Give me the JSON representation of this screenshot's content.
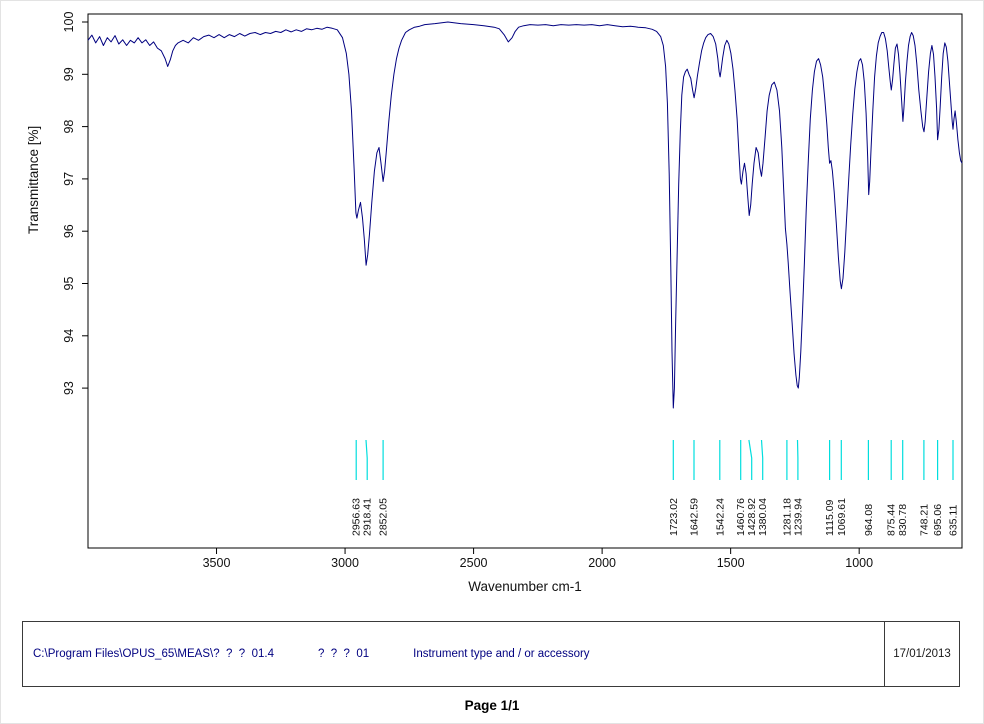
{
  "chart_data": {
    "type": "line",
    "title": "",
    "xlabel": "Wavenumber cm-1",
    "ylabel": "Transmittance [%]",
    "x_ticks": [
      3500,
      3000,
      2500,
      2000,
      1500,
      1000
    ],
    "y_ticks": [
      93,
      94,
      95,
      96,
      97,
      98,
      99,
      100
    ],
    "xlim": [
      4000,
      600
    ],
    "ylim": [
      92.0,
      100.2
    ],
    "x_axis_reversed": true,
    "grid": false,
    "line_color": "#000080",
    "peak_marker_color": "#00dede",
    "peaks": [
      "2956.63",
      "2918.41",
      "2852.05",
      "1723.02",
      "1642.59",
      "1542.24",
      "1460.76",
      "1428.92",
      "1380.04",
      "1281.18",
      "1239.94",
      "1115.09",
      "1069.61",
      "964.08",
      "875.44",
      "830.78",
      "748.21",
      "695.06",
      "635.11"
    ],
    "series": [
      {
        "name": "Transmittance",
        "points": [
          [
            4000,
            99.65
          ],
          [
            3985,
            99.75
          ],
          [
            3970,
            99.6
          ],
          [
            3955,
            99.72
          ],
          [
            3940,
            99.55
          ],
          [
            3925,
            99.7
          ],
          [
            3910,
            99.62
          ],
          [
            3895,
            99.74
          ],
          [
            3880,
            99.58
          ],
          [
            3865,
            99.66
          ],
          [
            3850,
            99.55
          ],
          [
            3835,
            99.65
          ],
          [
            3820,
            99.6
          ],
          [
            3805,
            99.7
          ],
          [
            3790,
            99.6
          ],
          [
            3775,
            99.66
          ],
          [
            3760,
            99.55
          ],
          [
            3745,
            99.62
          ],
          [
            3730,
            99.5
          ],
          [
            3715,
            99.45
          ],
          [
            3700,
            99.3
          ],
          [
            3690,
            99.15
          ],
          [
            3680,
            99.28
          ],
          [
            3670,
            99.45
          ],
          [
            3660,
            99.55
          ],
          [
            3650,
            99.6
          ],
          [
            3630,
            99.65
          ],
          [
            3610,
            99.6
          ],
          [
            3590,
            99.7
          ],
          [
            3570,
            99.65
          ],
          [
            3550,
            99.72
          ],
          [
            3530,
            99.75
          ],
          [
            3510,
            99.7
          ],
          [
            3490,
            99.76
          ],
          [
            3470,
            99.7
          ],
          [
            3450,
            99.76
          ],
          [
            3430,
            99.72
          ],
          [
            3410,
            99.78
          ],
          [
            3390,
            99.73
          ],
          [
            3370,
            99.78
          ],
          [
            3350,
            99.8
          ],
          [
            3330,
            99.76
          ],
          [
            3310,
            99.8
          ],
          [
            3290,
            99.78
          ],
          [
            3270,
            99.82
          ],
          [
            3250,
            99.8
          ],
          [
            3230,
            99.85
          ],
          [
            3210,
            99.81
          ],
          [
            3190,
            99.85
          ],
          [
            3170,
            99.82
          ],
          [
            3150,
            99.87
          ],
          [
            3130,
            99.85
          ],
          [
            3110,
            99.88
          ],
          [
            3090,
            99.86
          ],
          [
            3070,
            99.9
          ],
          [
            3050,
            99.88
          ],
          [
            3030,
            99.85
          ],
          [
            3010,
            99.7
          ],
          [
            2995,
            99.4
          ],
          [
            2985,
            99.0
          ],
          [
            2975,
            98.3
          ],
          [
            2965,
            97.2
          ],
          [
            2958,
            96.35
          ],
          [
            2954,
            96.25
          ],
          [
            2948,
            96.4
          ],
          [
            2940,
            96.55
          ],
          [
            2932,
            96.25
          ],
          [
            2925,
            95.85
          ],
          [
            2918,
            95.35
          ],
          [
            2912,
            95.55
          ],
          [
            2905,
            95.95
          ],
          [
            2896,
            96.55
          ],
          [
            2886,
            97.15
          ],
          [
            2876,
            97.5
          ],
          [
            2868,
            97.6
          ],
          [
            2860,
            97.3
          ],
          [
            2852,
            96.95
          ],
          [
            2846,
            97.15
          ],
          [
            2840,
            97.5
          ],
          [
            2830,
            98.1
          ],
          [
            2820,
            98.6
          ],
          [
            2810,
            99.0
          ],
          [
            2800,
            99.3
          ],
          [
            2790,
            99.5
          ],
          [
            2780,
            99.65
          ],
          [
            2765,
            99.8
          ],
          [
            2750,
            99.85
          ],
          [
            2730,
            99.9
          ],
          [
            2710,
            99.92
          ],
          [
            2690,
            99.95
          ],
          [
            2650,
            99.97
          ],
          [
            2600,
            100.0
          ],
          [
            2550,
            99.97
          ],
          [
            2500,
            99.95
          ],
          [
            2460,
            99.93
          ],
          [
            2420,
            99.9
          ],
          [
            2400,
            99.87
          ],
          [
            2380,
            99.75
          ],
          [
            2365,
            99.62
          ],
          [
            2350,
            99.7
          ],
          [
            2338,
            99.82
          ],
          [
            2325,
            99.9
          ],
          [
            2305,
            99.93
          ],
          [
            2280,
            99.95
          ],
          [
            2250,
            99.94
          ],
          [
            2220,
            99.95
          ],
          [
            2190,
            99.93
          ],
          [
            2160,
            99.95
          ],
          [
            2130,
            99.94
          ],
          [
            2100,
            99.95
          ],
          [
            2070,
            99.94
          ],
          [
            2040,
            99.95
          ],
          [
            2010,
            99.93
          ],
          [
            1980,
            99.95
          ],
          [
            1950,
            99.93
          ],
          [
            1920,
            99.91
          ],
          [
            1890,
            99.92
          ],
          [
            1860,
            99.9
          ],
          [
            1830,
            99.89
          ],
          [
            1805,
            99.86
          ],
          [
            1788,
            99.82
          ],
          [
            1772,
            99.72
          ],
          [
            1762,
            99.55
          ],
          [
            1753,
            99.15
          ],
          [
            1746,
            98.45
          ],
          [
            1739,
            97.1
          ],
          [
            1733,
            95.3
          ],
          [
            1728,
            93.7
          ],
          [
            1723,
            92.62
          ],
          [
            1719,
            93.0
          ],
          [
            1714,
            94.2
          ],
          [
            1708,
            95.6
          ],
          [
            1702,
            96.9
          ],
          [
            1696,
            97.9
          ],
          [
            1690,
            98.6
          ],
          [
            1683,
            98.95
          ],
          [
            1676,
            99.05
          ],
          [
            1669,
            99.1
          ],
          [
            1662,
            99.0
          ],
          [
            1655,
            98.92
          ],
          [
            1648,
            98.7
          ],
          [
            1642,
            98.55
          ],
          [
            1636,
            98.72
          ],
          [
            1629,
            98.98
          ],
          [
            1621,
            99.22
          ],
          [
            1613,
            99.45
          ],
          [
            1605,
            99.6
          ],
          [
            1597,
            99.7
          ],
          [
            1588,
            99.76
          ],
          [
            1578,
            99.78
          ],
          [
            1568,
            99.72
          ],
          [
            1558,
            99.58
          ],
          [
            1550,
            99.3
          ],
          [
            1545,
            99.05
          ],
          [
            1541,
            98.95
          ],
          [
            1537,
            99.08
          ],
          [
            1531,
            99.32
          ],
          [
            1523,
            99.55
          ],
          [
            1515,
            99.65
          ],
          [
            1507,
            99.58
          ],
          [
            1499,
            99.4
          ],
          [
            1491,
            99.1
          ],
          [
            1483,
            98.68
          ],
          [
            1475,
            98.15
          ],
          [
            1468,
            97.5
          ],
          [
            1462,
            97.0
          ],
          [
            1458,
            96.9
          ],
          [
            1452,
            97.15
          ],
          [
            1446,
            97.3
          ],
          [
            1440,
            97.1
          ],
          [
            1434,
            96.7
          ],
          [
            1428,
            96.3
          ],
          [
            1422,
            96.5
          ],
          [
            1416,
            96.9
          ],
          [
            1409,
            97.3
          ],
          [
            1401,
            97.6
          ],
          [
            1393,
            97.5
          ],
          [
            1386,
            97.2
          ],
          [
            1380,
            97.05
          ],
          [
            1374,
            97.3
          ],
          [
            1366,
            97.8
          ],
          [
            1358,
            98.3
          ],
          [
            1350,
            98.6
          ],
          [
            1340,
            98.8
          ],
          [
            1330,
            98.85
          ],
          [
            1320,
            98.7
          ],
          [
            1310,
            98.3
          ],
          [
            1301,
            97.6
          ],
          [
            1293,
            96.7
          ],
          [
            1287,
            96.05
          ],
          [
            1281,
            95.75
          ],
          [
            1276,
            95.4
          ],
          [
            1269,
            94.85
          ],
          [
            1261,
            94.25
          ],
          [
            1253,
            93.65
          ],
          [
            1246,
            93.25
          ],
          [
            1241,
            93.05
          ],
          [
            1237,
            93.0
          ],
          [
            1233,
            93.2
          ],
          [
            1227,
            93.7
          ],
          [
            1220,
            94.5
          ],
          [
            1213,
            95.4
          ],
          [
            1206,
            96.4
          ],
          [
            1198,
            97.35
          ],
          [
            1190,
            98.15
          ],
          [
            1182,
            98.7
          ],
          [
            1174,
            99.05
          ],
          [
            1166,
            99.25
          ],
          [
            1158,
            99.3
          ],
          [
            1150,
            99.18
          ],
          [
            1142,
            98.95
          ],
          [
            1134,
            98.55
          ],
          [
            1126,
            98.05
          ],
          [
            1120,
            97.6
          ],
          [
            1115,
            97.3
          ],
          [
            1110,
            97.35
          ],
          [
            1104,
            97.15
          ],
          [
            1097,
            96.75
          ],
          [
            1089,
            96.15
          ],
          [
            1081,
            95.5
          ],
          [
            1074,
            95.05
          ],
          [
            1069,
            94.9
          ],
          [
            1063,
            95.1
          ],
          [
            1056,
            95.6
          ],
          [
            1049,
            96.25
          ],
          [
            1041,
            96.95
          ],
          [
            1033,
            97.65
          ],
          [
            1025,
            98.25
          ],
          [
            1017,
            98.72
          ],
          [
            1009,
            99.05
          ],
          [
            1001,
            99.25
          ],
          [
            994,
            99.3
          ],
          [
            987,
            99.18
          ],
          [
            980,
            98.85
          ],
          [
            973,
            98.25
          ],
          [
            967,
            97.4
          ],
          [
            963,
            96.7
          ],
          [
            959,
            96.95
          ],
          [
            954,
            97.55
          ],
          [
            947,
            98.3
          ],
          [
            940,
            98.95
          ],
          [
            933,
            99.35
          ],
          [
            926,
            99.6
          ],
          [
            919,
            99.72
          ],
          [
            912,
            99.8
          ],
          [
            905,
            99.8
          ],
          [
            898,
            99.68
          ],
          [
            891,
            99.45
          ],
          [
            885,
            99.15
          ],
          [
            879,
            98.85
          ],
          [
            875,
            98.7
          ],
          [
            870,
            98.9
          ],
          [
            865,
            99.2
          ],
          [
            859,
            99.5
          ],
          [
            853,
            99.58
          ],
          [
            847,
            99.38
          ],
          [
            841,
            99.0
          ],
          [
            835,
            98.5
          ],
          [
            830,
            98.1
          ],
          [
            826,
            98.35
          ],
          [
            820,
            98.85
          ],
          [
            814,
            99.25
          ],
          [
            808,
            99.55
          ],
          [
            802,
            99.72
          ],
          [
            796,
            99.8
          ],
          [
            790,
            99.74
          ],
          [
            783,
            99.55
          ],
          [
            776,
            99.2
          ],
          [
            768,
            98.7
          ],
          [
            760,
            98.3
          ],
          [
            753,
            98.0
          ],
          [
            748,
            97.9
          ],
          [
            743,
            98.1
          ],
          [
            737,
            98.55
          ],
          [
            730,
            99.05
          ],
          [
            723,
            99.4
          ],
          [
            717,
            99.55
          ],
          [
            711,
            99.38
          ],
          [
            705,
            98.95
          ],
          [
            699,
            98.35
          ],
          [
            695,
            97.75
          ],
          [
            690,
            97.95
          ],
          [
            685,
            98.35
          ],
          [
            679,
            98.95
          ],
          [
            673,
            99.4
          ],
          [
            667,
            99.6
          ],
          [
            661,
            99.52
          ],
          [
            655,
            99.25
          ],
          [
            649,
            98.85
          ],
          [
            643,
            98.45
          ],
          [
            638,
            98.1
          ],
          [
            635,
            97.95
          ],
          [
            631,
            98.15
          ],
          [
            627,
            98.3
          ],
          [
            622,
            98.1
          ],
          [
            616,
            97.75
          ],
          [
            610,
            97.5
          ],
          [
            605,
            97.35
          ],
          [
            600,
            97.3
          ]
        ]
      }
    ]
  },
  "footer": {
    "file_path": "C:\\Program Files\\OPUS_65\\MEAS\\?  ?  ?  01.4",
    "sample_name": "?  ?  ?  01",
    "instrument": "Instrument type and / or accessory",
    "date": "17/01/2013"
  },
  "page_label": "Page 1/1"
}
